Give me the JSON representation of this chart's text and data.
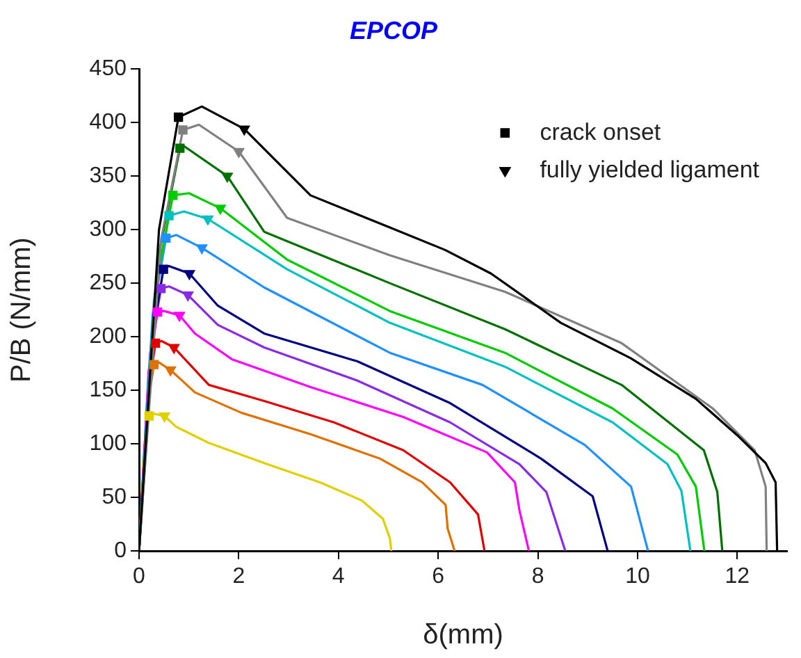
{
  "chart_data": {
    "type": "line",
    "title": "EPCOP",
    "xlabel": "δ(mm)",
    "ylabel": "P/B (N/mm)",
    "xlim": [
      0,
      13
    ],
    "xticks": [
      0,
      2,
      4,
      6,
      8,
      10,
      12
    ],
    "ylim": [
      0,
      450
    ],
    "yticks": [
      0,
      50,
      100,
      150,
      200,
      250,
      300,
      350,
      400,
      450
    ],
    "grid": false,
    "legend": "top right",
    "marker": "none",
    "line_style": "solid",
    "series": [
      {
        "color": "#000000",
        "x": [
          0,
          0.4,
          0.79,
          1.26,
          2.11,
          3.44,
          5.03,
          6.14,
          7.06,
          8.46,
          9.86,
          11.17,
          12.0,
          12.57,
          12.77,
          12.8
        ],
        "values": [
          0,
          300,
          405,
          415,
          394,
          332,
          302,
          281,
          259,
          213,
          180,
          142,
          108,
          82,
          64,
          0
        ]
      },
      {
        "color": "#808080",
        "x": [
          0,
          0.44,
          0.88,
          1.2,
          2.0,
          2.97,
          5.03,
          7.34,
          9.68,
          11.51,
          12.35,
          12.57,
          12.59
        ],
        "values": [
          0,
          290,
          393,
          398,
          373,
          311,
          276,
          242,
          194,
          133,
          94,
          60,
          0
        ]
      },
      {
        "color": "#007000",
        "x": [
          0,
          0.41,
          0.82,
          0.9,
          1.77,
          2.51,
          5.03,
          7.34,
          9.68,
          11.33,
          11.6,
          11.7
        ],
        "values": [
          0,
          280,
          376,
          378,
          350,
          298,
          250,
          207,
          155,
          94,
          55,
          0
        ]
      },
      {
        "color": "#00cc00",
        "x": [
          0,
          0.34,
          0.68,
          1.0,
          1.63,
          2.97,
          5.03,
          7.34,
          9.5,
          10.8,
          11.17,
          11.34
        ],
        "values": [
          0,
          250,
          332,
          334,
          320,
          272,
          224,
          185,
          133,
          90,
          60,
          0
        ]
      },
      {
        "color": "#00c0c0",
        "x": [
          0,
          0.3,
          0.6,
          0.9,
          1.38,
          2.97,
          5.03,
          7.34,
          9.5,
          10.6,
          10.88,
          11.06
        ],
        "values": [
          0,
          235,
          313,
          317,
          310,
          263,
          213,
          172,
          120,
          81,
          56,
          0
        ]
      },
      {
        "color": "#1e90ff",
        "x": [
          0,
          0.27,
          0.54,
          0.75,
          1.26,
          2.51,
          5.03,
          6.89,
          8.94,
          9.87,
          10.21
        ],
        "values": [
          0,
          220,
          292,
          295,
          283,
          246,
          185,
          155,
          99,
          60,
          0
        ]
      },
      {
        "color": "#000080",
        "x": [
          0,
          0.25,
          0.49,
          0.6,
          1.01,
          1.58,
          2.51,
          4.38,
          6.24,
          8.07,
          9.1,
          9.4
        ],
        "values": [
          0,
          197,
          263,
          266,
          259,
          229,
          203,
          177,
          138,
          86,
          51,
          0
        ]
      },
      {
        "color": "#8a2be2",
        "x": [
          0,
          0.22,
          0.44,
          0.6,
          0.98,
          1.58,
          2.51,
          4.38,
          6.24,
          7.63,
          8.17,
          8.55
        ],
        "values": [
          0,
          184,
          245,
          247,
          239,
          211,
          190,
          159,
          120,
          81,
          55,
          0
        ]
      },
      {
        "color": "#ff00ff",
        "x": [
          0,
          0.19,
          0.37,
          0.5,
          0.81,
          1.12,
          1.86,
          3.44,
          5.3,
          6.98,
          7.54,
          7.63,
          7.82
        ],
        "values": [
          0,
          167,
          223,
          224,
          220,
          203,
          179,
          153,
          125,
          92,
          64,
          38,
          0
        ]
      },
      {
        "color": "#e00000",
        "x": [
          0,
          0.17,
          0.33,
          0.45,
          0.7,
          1.4,
          2.51,
          3.91,
          5.3,
          6.24,
          6.8,
          6.93
        ],
        "values": [
          0,
          145,
          194,
          196,
          190,
          155,
          140,
          120,
          94,
          64,
          34,
          0
        ]
      },
      {
        "color": "#e07000",
        "x": [
          0,
          0.15,
          0.3,
          0.4,
          0.63,
          1.12,
          2.05,
          3.44,
          4.84,
          5.68,
          6.15,
          6.19,
          6.33
        ],
        "values": [
          0,
          130,
          174,
          176,
          169,
          148,
          129,
          109,
          86,
          64,
          43,
          21,
          0
        ]
      },
      {
        "color": "#e0d000",
        "x": [
          0,
          0.1,
          0.2,
          0.3,
          0.51,
          0.74,
          1.39,
          2.51,
          3.63,
          4.47,
          4.89,
          5.03,
          5.06
        ],
        "values": [
          0,
          95,
          126,
          128,
          126,
          116,
          101,
          82,
          64,
          47,
          30,
          12,
          0
        ]
      },
      {
        "type": "scatter",
        "name": "crack onset",
        "marker": "square",
        "color": "#000000",
        "x": [
          0.79,
          0.88,
          0.82,
          0.68,
          0.6,
          0.54,
          0.49,
          0.44,
          0.37,
          0.33,
          0.3,
          0.2
        ],
        "values": [
          405,
          393,
          376,
          332,
          313,
          292,
          263,
          245,
          223,
          194,
          174,
          126
        ],
        "colors": [
          "#000000",
          "#808080",
          "#007000",
          "#00cc00",
          "#00c0c0",
          "#1e90ff",
          "#000080",
          "#8a2be2",
          "#ff00ff",
          "#e00000",
          "#e07000",
          "#e0d000"
        ]
      },
      {
        "type": "scatter",
        "name": "fully yielded ligament",
        "marker": "triangle",
        "color": "#000000",
        "x": [
          2.11,
          2.0,
          1.77,
          1.63,
          1.38,
          1.26,
          1.01,
          0.98,
          0.81,
          0.7,
          0.63,
          0.51
        ],
        "values": [
          394,
          373,
          350,
          320,
          310,
          283,
          259,
          239,
          220,
          190,
          169,
          126
        ],
        "colors": [
          "#000000",
          "#808080",
          "#007000",
          "#00cc00",
          "#00c0c0",
          "#1e90ff",
          "#000080",
          "#8a2be2",
          "#ff00ff",
          "#e00000",
          "#e07000",
          "#e0d000"
        ]
      }
    ]
  }
}
